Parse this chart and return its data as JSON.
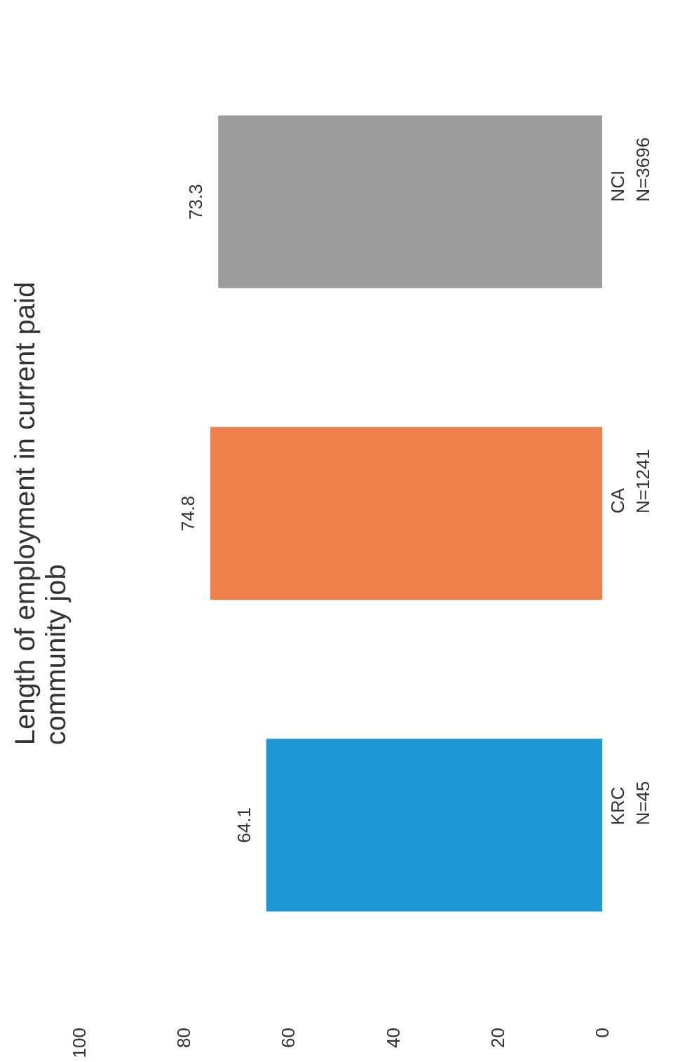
{
  "chart_data": {
    "type": "bar",
    "orientation": "horizontal",
    "title": "Length of employment in current paid\ncommunity job",
    "categories": [
      "NCI\nN=3696",
      "CA\nN=1241",
      "KRC\nN=45"
    ],
    "values": [
      73.3,
      74.8,
      64.1
    ],
    "colors": [
      "#9c9c9c",
      "#f0804c",
      "#1e98d4"
    ],
    "xlim": [
      100,
      0
    ],
    "xticks": [
      100,
      80,
      60,
      40,
      20,
      0
    ],
    "data_labels": true,
    "grid": false
  }
}
